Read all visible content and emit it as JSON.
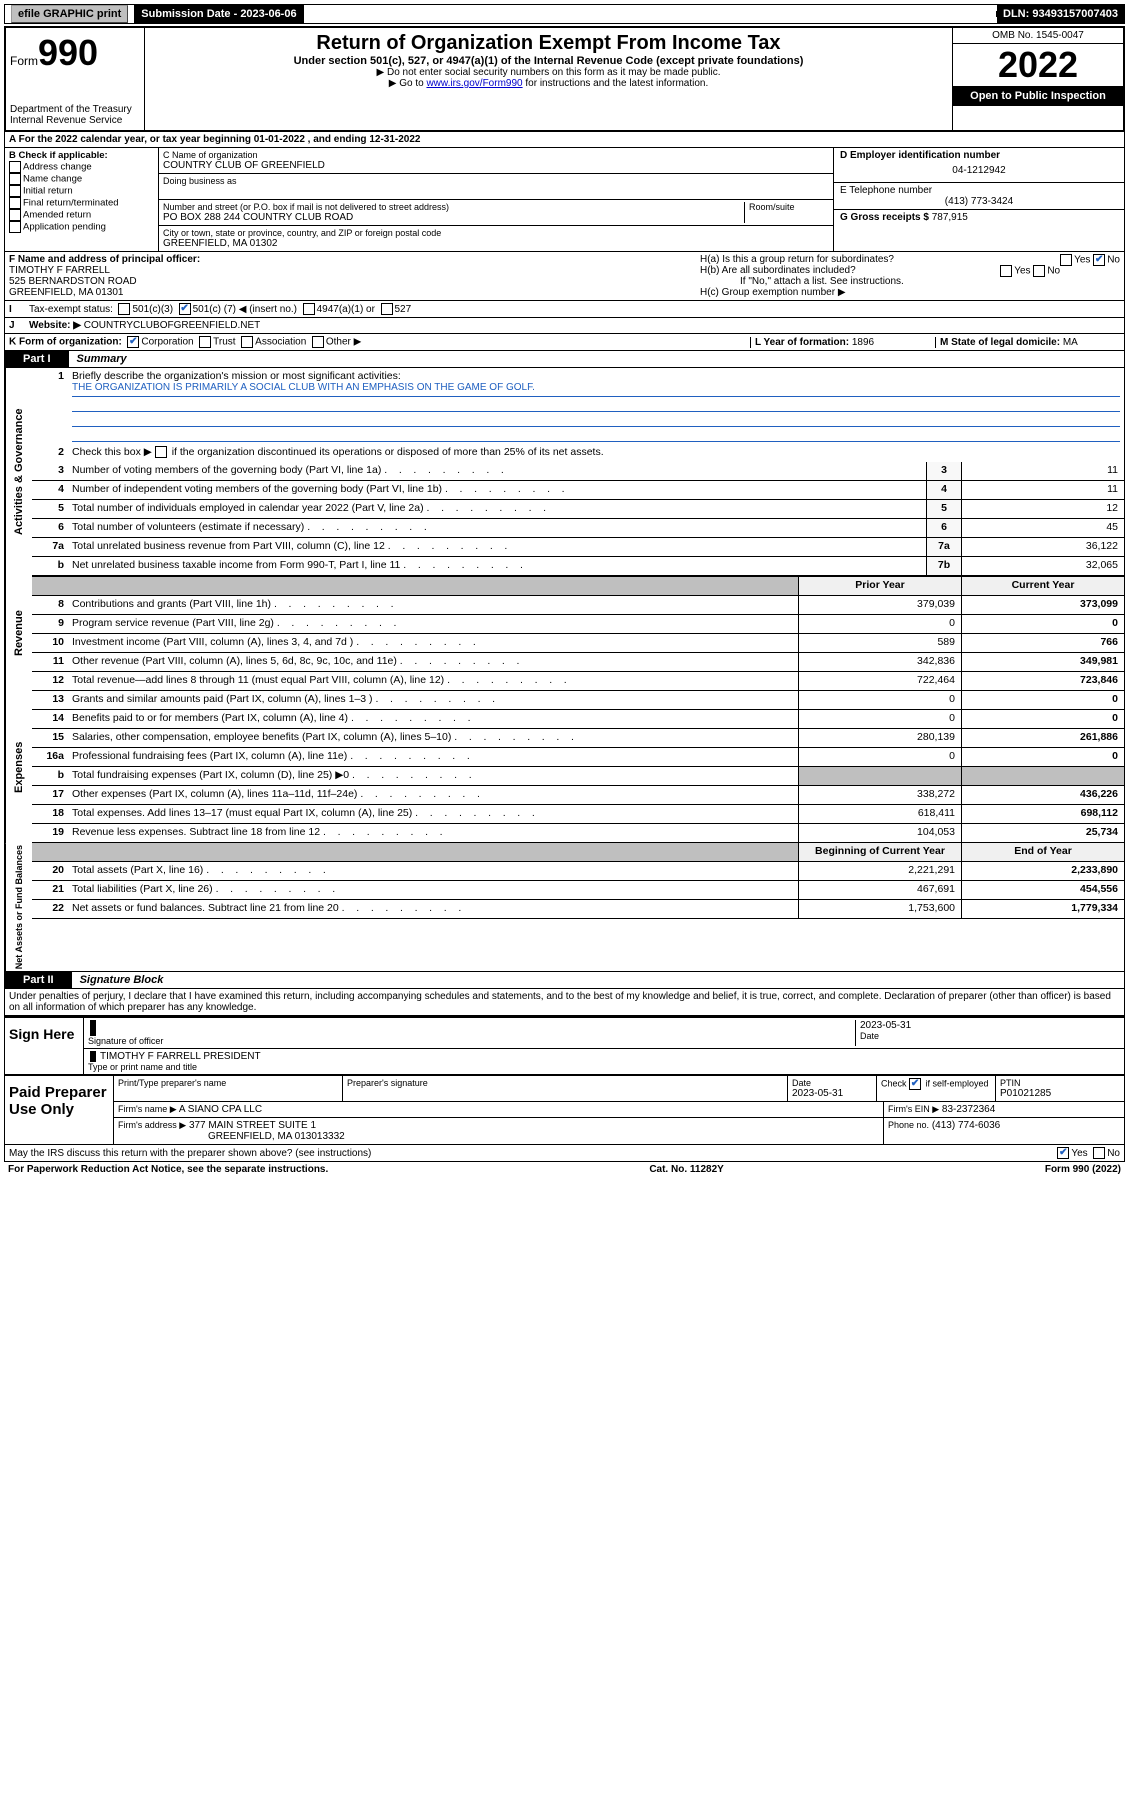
{
  "topbar": {
    "efile": "efile GRAPHIC print",
    "submission_label": "Submission Date - 2023-06-06",
    "dln_label": "DLN: 93493157007403"
  },
  "header": {
    "form_prefix": "Form",
    "form_number": "990",
    "dept": "Department of the Treasury",
    "irs": "Internal Revenue Service",
    "title": "Return of Organization Exempt From Income Tax",
    "subtitle": "Under section 501(c), 527, or 4947(a)(1) of the Internal Revenue Code (except private foundations)",
    "warn": "▶ Do not enter social security numbers on this form as it may be made public.",
    "goto_prefix": "▶ Go to ",
    "goto_link": "www.irs.gov/Form990",
    "goto_suffix": " for instructions and the latest information.",
    "omb": "OMB No. 1545-0047",
    "year": "2022",
    "open": "Open to Public Inspection"
  },
  "row_a": "A For the 2022 calendar year, or tax year beginning 01-01-2022    , and ending 12-31-2022",
  "section_b": {
    "label": "B Check if applicable:",
    "items": [
      "Address change",
      "Name change",
      "Initial return",
      "Final return/terminated",
      "Amended return",
      "Application pending"
    ]
  },
  "section_c": {
    "name_label": "C Name of organization",
    "name": "COUNTRY CLUB OF GREENFIELD",
    "dba_label": "Doing business as",
    "addr_label": "Number and street (or P.O. box if mail is not delivered to street address)",
    "room_label": "Room/suite",
    "addr": "PO BOX 288 244 COUNTRY CLUB ROAD",
    "city_label": "City or town, state or province, country, and ZIP or foreign postal code",
    "city": "GREENFIELD, MA  01302"
  },
  "section_d": {
    "label": "D Employer identification number",
    "value": "04-1212942"
  },
  "section_e": {
    "label": "E Telephone number",
    "value": "(413) 773-3424"
  },
  "section_g": {
    "label": "G Gross receipts $",
    "value": "787,915"
  },
  "section_f": {
    "label": "F Name and address of principal officer:",
    "name": "TIMOTHY F FARRELL",
    "addr1": "525 BERNARDSTON ROAD",
    "addr2": "GREENFIELD, MA  01301"
  },
  "section_h": {
    "ha": "H(a)  Is this a group return for subordinates?",
    "hb": "H(b)  Are all subordinates included?",
    "hb_note": "If \"No,\" attach a list. See instructions.",
    "hc": "H(c)  Group exemption number ▶"
  },
  "section_i": {
    "label": "I",
    "tax_label": "Tax-exempt status:",
    "opt1": "501(c)(3)",
    "opt2_pre": "501(c) (",
    "opt2_val": "7",
    "opt2_post": ") ◀ (insert no.)",
    "opt3": "4947(a)(1) or",
    "opt4": "527"
  },
  "section_j": {
    "label": "J",
    "web_label": "Website: ▶",
    "web": "COUNTRYCLUBOFGREENFIELD.NET"
  },
  "section_k": {
    "label": "K Form of organization:",
    "opts": [
      "Corporation",
      "Trust",
      "Association",
      "Other ▶"
    ]
  },
  "section_l": {
    "label": "L Year of formation:",
    "value": "1896"
  },
  "section_m": {
    "label": "M State of legal domicile:",
    "value": "MA"
  },
  "part1": {
    "tab": "Part I",
    "title": "Summary",
    "q1": "Briefly describe the organization's mission or most significant activities:",
    "mission": "THE ORGANIZATION IS PRIMARILY A SOCIAL CLUB WITH AN EMPHASIS ON THE GAME OF GOLF.",
    "q2": "Check this box ▶     if the organization discontinued its operations or disposed of more than 25% of its net assets.",
    "rows_gov": [
      {
        "n": "3",
        "d": "Number of voting members of the governing body (Part VI, line 1a)",
        "c": "3",
        "v": "11"
      },
      {
        "n": "4",
        "d": "Number of independent voting members of the governing body (Part VI, line 1b)",
        "c": "4",
        "v": "11"
      },
      {
        "n": "5",
        "d": "Total number of individuals employed in calendar year 2022 (Part V, line 2a)",
        "c": "5",
        "v": "12"
      },
      {
        "n": "6",
        "d": "Total number of volunteers (estimate if necessary)",
        "c": "6",
        "v": "45"
      },
      {
        "n": "7a",
        "d": "Total unrelated business revenue from Part VIII, column (C), line 12",
        "c": "7a",
        "v": "36,122"
      },
      {
        "n": "b",
        "d": "Net unrelated business taxable income from Form 990-T, Part I, line 11",
        "c": "7b",
        "v": "32,065"
      }
    ],
    "col_headers": {
      "prior": "Prior Year",
      "current": "Current Year"
    },
    "rows_rev": [
      {
        "n": "8",
        "d": "Contributions and grants (Part VIII, line 1h)",
        "p": "379,039",
        "c": "373,099"
      },
      {
        "n": "9",
        "d": "Program service revenue (Part VIII, line 2g)",
        "p": "0",
        "c": "0"
      },
      {
        "n": "10",
        "d": "Investment income (Part VIII, column (A), lines 3, 4, and 7d )",
        "p": "589",
        "c": "766"
      },
      {
        "n": "11",
        "d": "Other revenue (Part VIII, column (A), lines 5, 6d, 8c, 9c, 10c, and 11e)",
        "p": "342,836",
        "c": "349,981"
      },
      {
        "n": "12",
        "d": "Total revenue—add lines 8 through 11 (must equal Part VIII, column (A), line 12)",
        "p": "722,464",
        "c": "723,846"
      }
    ],
    "rows_exp": [
      {
        "n": "13",
        "d": "Grants and similar amounts paid (Part IX, column (A), lines 1–3 )",
        "p": "0",
        "c": "0"
      },
      {
        "n": "14",
        "d": "Benefits paid to or for members (Part IX, column (A), line 4)",
        "p": "0",
        "c": "0"
      },
      {
        "n": "15",
        "d": "Salaries, other compensation, employee benefits (Part IX, column (A), lines 5–10)",
        "p": "280,139",
        "c": "261,886"
      },
      {
        "n": "16a",
        "d": "Professional fundraising fees (Part IX, column (A), line 11e)",
        "p": "0",
        "c": "0"
      },
      {
        "n": "b",
        "d": "Total fundraising expenses (Part IX, column (D), line 25) ▶0",
        "p": "",
        "c": ""
      },
      {
        "n": "17",
        "d": "Other expenses (Part IX, column (A), lines 11a–11d, 11f–24e)",
        "p": "338,272",
        "c": "436,226"
      },
      {
        "n": "18",
        "d": "Total expenses. Add lines 13–17 (must equal Part IX, column (A), line 25)",
        "p": "618,411",
        "c": "698,112"
      },
      {
        "n": "19",
        "d": "Revenue less expenses. Subtract line 18 from line 12",
        "p": "104,053",
        "c": "25,734"
      }
    ],
    "col_headers2": {
      "beg": "Beginning of Current Year",
      "end": "End of Year"
    },
    "rows_net": [
      {
        "n": "20",
        "d": "Total assets (Part X, line 16)",
        "p": "2,221,291",
        "c": "2,233,890"
      },
      {
        "n": "21",
        "d": "Total liabilities (Part X, line 26)",
        "p": "467,691",
        "c": "454,556"
      },
      {
        "n": "22",
        "d": "Net assets or fund balances. Subtract line 21 from line 20",
        "p": "1,753,600",
        "c": "1,779,334"
      }
    ],
    "vlabels": {
      "gov": "Activities & Governance",
      "rev": "Revenue",
      "exp": "Expenses",
      "net": "Net Assets or Fund Balances"
    }
  },
  "part2": {
    "tab": "Part II",
    "title": "Signature Block",
    "declaration": "Under penalties of perjury, I declare that I have examined this return, including accompanying schedules and statements, and to the best of my knowledge and belief, it is true, correct, and complete. Declaration of preparer (other than officer) is based on all information of which preparer has any knowledge.",
    "sign_here": "Sign Here",
    "sig_officer": "Signature of officer",
    "sig_date_label": "Date",
    "sig_date": "2023-05-31",
    "officer_name": "TIMOTHY F FARRELL  PRESIDENT",
    "officer_sub": "Type or print name and title",
    "paid": "Paid Preparer Use Only",
    "prep_name_label": "Print/Type preparer's name",
    "prep_sig_label": "Preparer's signature",
    "prep_date_label": "Date",
    "prep_date": "2023-05-31",
    "prep_check": "Check        if self-employed",
    "ptin_label": "PTIN",
    "ptin": "P01021285",
    "firm_name_label": "Firm's name    ▶",
    "firm_name": "A SIANO CPA LLC",
    "firm_ein_label": "Firm's EIN ▶",
    "firm_ein": "83-2372364",
    "firm_addr_label": "Firm's address ▶",
    "firm_addr1": "377 MAIN STREET SUITE 1",
    "firm_addr2": "GREENFIELD, MA  013013332",
    "firm_phone_label": "Phone no.",
    "firm_phone": "(413) 774-6036",
    "discuss": "May the IRS discuss this return with the preparer shown above? (see instructions)"
  },
  "footer": {
    "left": "For Paperwork Reduction Act Notice, see the separate instructions.",
    "center": "Cat. No. 11282Y",
    "right": "Form 990 (2022)"
  }
}
